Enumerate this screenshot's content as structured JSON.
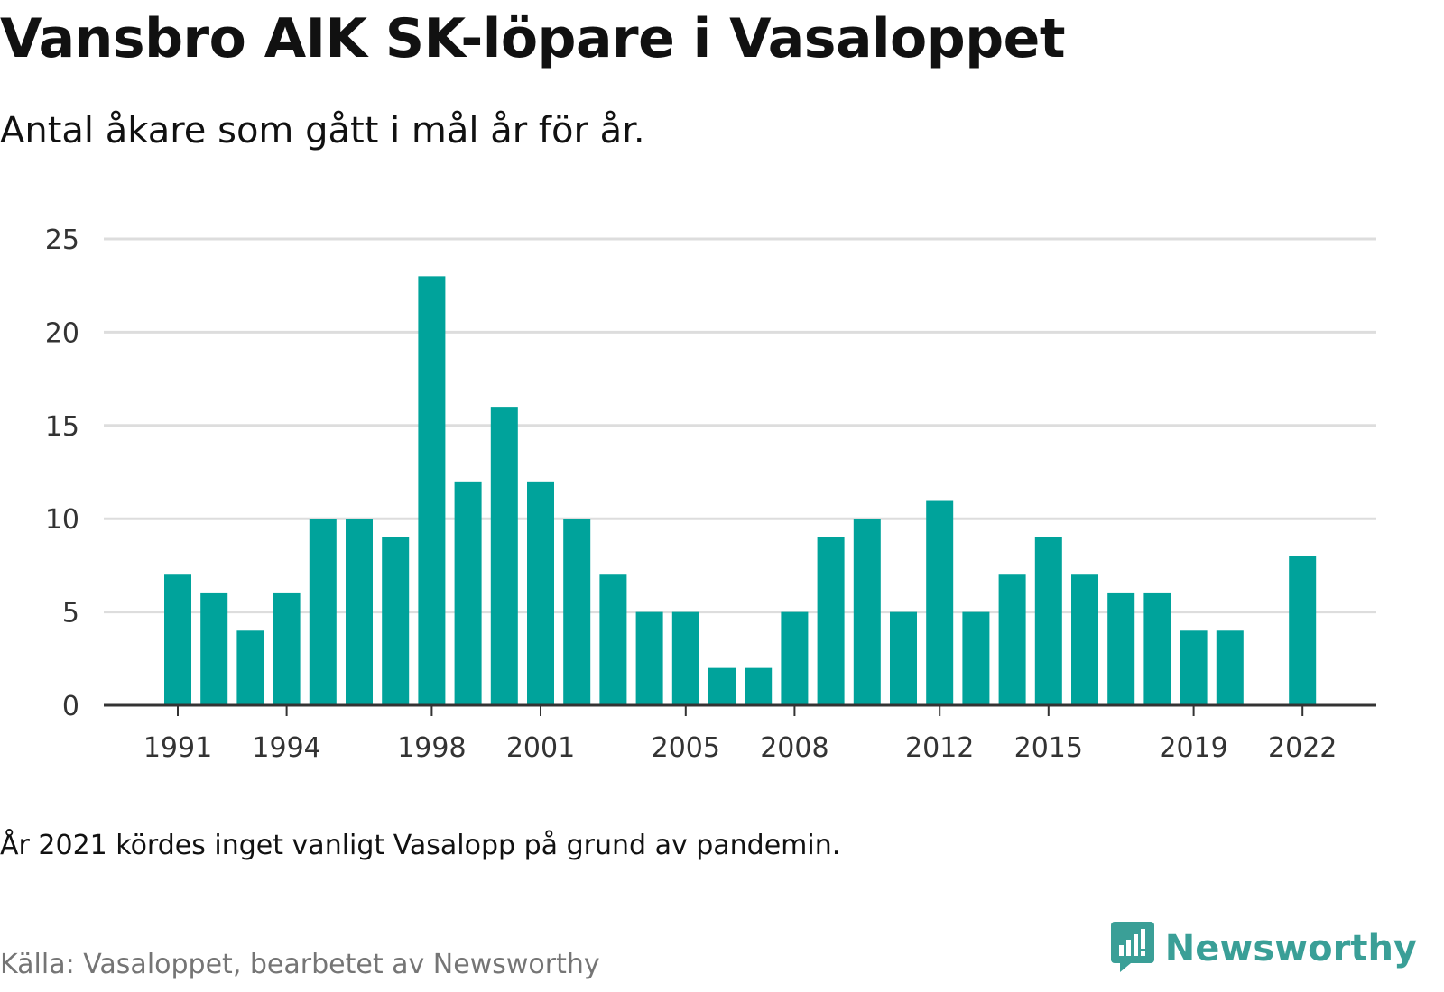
{
  "title": "Vansbro AIK SK-löpare i Vasaloppet",
  "subtitle": "Antal åkare som gått i mål år för år.",
  "note": "År 2021 kördes inget vanligt Vasalopp på grund av pandemin.",
  "source": "Källa: Vasaloppet, bearbetet av Newsworthy",
  "brand": {
    "name": "Newsworthy",
    "icon": "newsworthy-logo-icon",
    "color": "#3a9f97"
  },
  "colors": {
    "bar": "#00a39b",
    "grid": "#dddddd",
    "axis": "#333333"
  },
  "chart_data": {
    "type": "bar",
    "title": "Vansbro AIK SK-löpare i Vasaloppet",
    "xlabel": "",
    "ylabel": "",
    "ylim": [
      0,
      25
    ],
    "yticks": [
      0,
      5,
      10,
      15,
      20,
      25
    ],
    "grid": true,
    "legend": "none",
    "xtick_labels": [
      "1991",
      "1994",
      "1998",
      "2001",
      "2005",
      "2008",
      "2012",
      "2015",
      "2019",
      "2022"
    ],
    "categories": [
      "1991",
      "1992",
      "1993",
      "1994",
      "1995",
      "1996",
      "1997",
      "1998",
      "1999",
      "2000",
      "2001",
      "2002",
      "2003",
      "2004",
      "2005",
      "2006",
      "2007",
      "2008",
      "2009",
      "2010",
      "2011",
      "2012",
      "2013",
      "2014",
      "2015",
      "2016",
      "2017",
      "2018",
      "2019",
      "2020",
      "2021",
      "2022"
    ],
    "values": [
      7,
      6,
      4,
      6,
      10,
      10,
      9,
      23,
      12,
      16,
      12,
      10,
      7,
      5,
      5,
      2,
      2,
      5,
      9,
      10,
      5,
      11,
      5,
      7,
      9,
      7,
      6,
      6,
      4,
      4,
      null,
      8
    ]
  }
}
